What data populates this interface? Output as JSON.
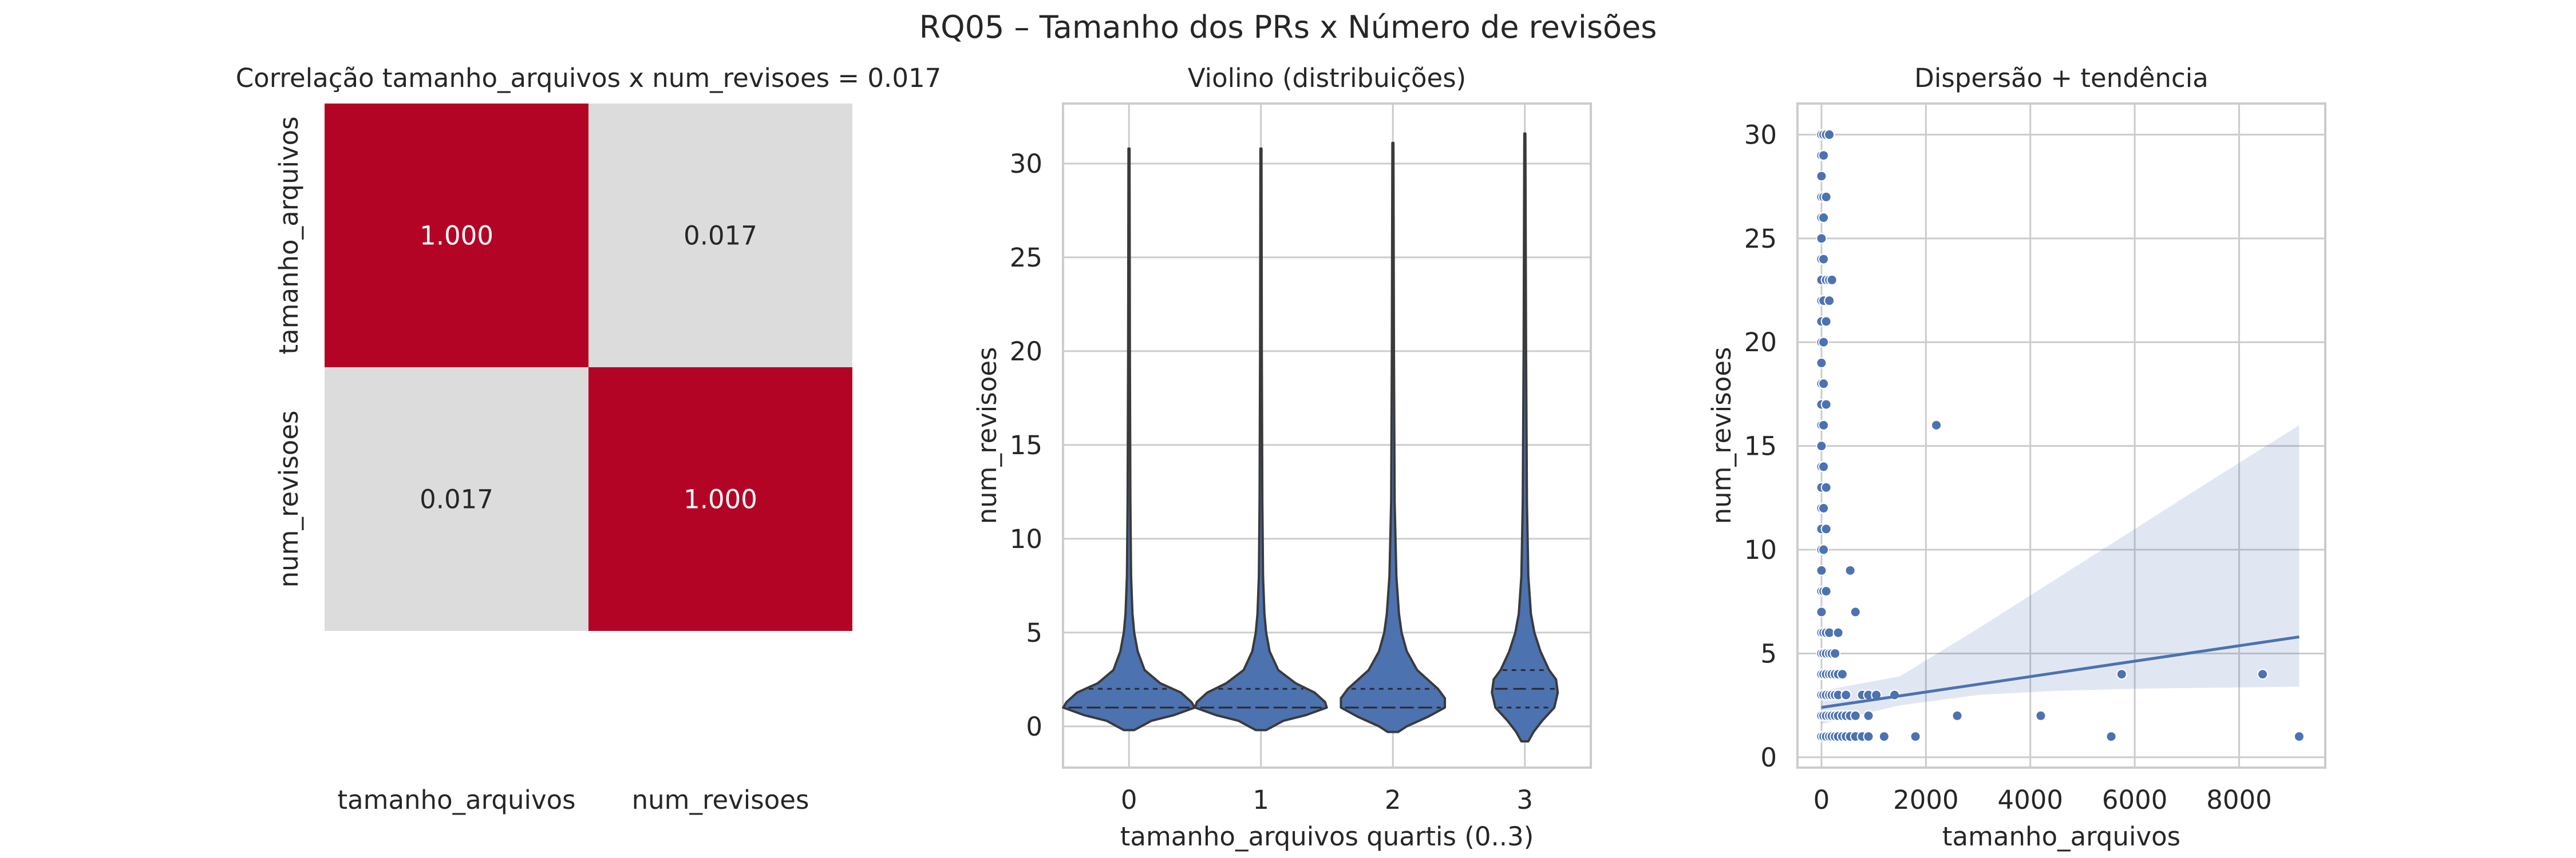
{
  "figure": {
    "title": "RQ05 – Tamanho dos PRs x Número de revisões"
  },
  "chart_data": [
    {
      "type": "heatmap",
      "title": "Correlação tamanho_arquivos x num_revisoes = 0.017",
      "x_categories": [
        "tamanho_arquivos",
        "num_revisoes"
      ],
      "y_categories": [
        "tamanho_arquivos",
        "num_revisoes"
      ],
      "values": [
        [
          1.0,
          0.017
        ],
        [
          0.017,
          1.0
        ]
      ],
      "cell_labels": [
        [
          "1.000",
          "0.017"
        ],
        [
          "0.017",
          "1.000"
        ]
      ],
      "colors": {
        "high": "#b40426",
        "low": "#dddcdc",
        "high_text": "#ffffff",
        "low_text": "#262626"
      }
    },
    {
      "type": "violin",
      "title": "Violino (distribuições)",
      "xlabel": "tamanho_arquivos quartis (0..3)",
      "ylabel": "num_revisoes",
      "categories": [
        "0",
        "1",
        "2",
        "3"
      ],
      "ylim": [
        -2.2,
        33.2
      ],
      "yticks": [
        0,
        5,
        10,
        15,
        20,
        25,
        30
      ],
      "grid": true,
      "color": "#4c72b0",
      "violins": [
        {
          "category": "0",
          "min": -0.2,
          "max": 30.8,
          "q1": 1,
          "median": 1,
          "q3": 2,
          "profile": [
            [
              -0.2,
              0.03
            ],
            [
              0,
              0.07
            ],
            [
              0.3,
              0.13
            ],
            [
              0.6,
              0.26
            ],
            [
              1,
              0.38
            ],
            [
              1.3,
              0.36
            ],
            [
              1.8,
              0.3
            ],
            [
              2.3,
              0.18
            ],
            [
              3,
              0.09
            ],
            [
              4,
              0.05
            ],
            [
              5,
              0.03
            ],
            [
              6,
              0.02
            ],
            [
              8,
              0.012
            ],
            [
              12,
              0.008
            ],
            [
              20,
              0.005
            ],
            [
              30.8,
              0.003
            ]
          ]
        },
        {
          "category": "1",
          "min": -0.2,
          "max": 30.8,
          "q1": 1,
          "median": 1,
          "q3": 2,
          "profile": [
            [
              -0.2,
              0.03
            ],
            [
              0,
              0.07
            ],
            [
              0.3,
              0.13
            ],
            [
              0.6,
              0.26
            ],
            [
              1,
              0.38
            ],
            [
              1.3,
              0.37
            ],
            [
              1.8,
              0.31
            ],
            [
              2.3,
              0.2
            ],
            [
              3,
              0.1
            ],
            [
              4,
              0.05
            ],
            [
              5,
              0.03
            ],
            [
              6,
              0.02
            ],
            [
              8,
              0.012
            ],
            [
              12,
              0.008
            ],
            [
              20,
              0.005
            ],
            [
              30.8,
              0.003
            ]
          ]
        },
        {
          "category": "2",
          "min": -0.3,
          "max": 31.1,
          "q1": 1,
          "median": 1,
          "q3": 2,
          "profile": [
            [
              -0.3,
              0.03
            ],
            [
              0,
              0.08
            ],
            [
              0.5,
              0.2
            ],
            [
              1,
              0.3
            ],
            [
              1.5,
              0.3
            ],
            [
              2,
              0.26
            ],
            [
              2.5,
              0.2
            ],
            [
              3,
              0.14
            ],
            [
              4,
              0.08
            ],
            [
              5,
              0.05
            ],
            [
              6,
              0.035
            ],
            [
              8,
              0.02
            ],
            [
              12,
              0.01
            ],
            [
              20,
              0.006
            ],
            [
              31.1,
              0.003
            ]
          ]
        },
        {
          "category": "3",
          "min": -0.8,
          "max": 31.6,
          "q1": 1,
          "median": 2,
          "q3": 3,
          "profile": [
            [
              -0.8,
              0.02
            ],
            [
              -0.3,
              0.05
            ],
            [
              0.3,
              0.1
            ],
            [
              1,
              0.17
            ],
            [
              1.8,
              0.19
            ],
            [
              2.5,
              0.18
            ],
            [
              3,
              0.14
            ],
            [
              4,
              0.09
            ],
            [
              5,
              0.055
            ],
            [
              6,
              0.035
            ],
            [
              8,
              0.02
            ],
            [
              12,
              0.012
            ],
            [
              20,
              0.007
            ],
            [
              31.6,
              0.003
            ]
          ]
        }
      ]
    },
    {
      "type": "scatter",
      "title": "Dispersão + tendência",
      "xlabel": "tamanho_arquivos",
      "ylabel": "num_revisoes",
      "xlim": [
        -460,
        9650
      ],
      "ylim": [
        -0.5,
        31.5
      ],
      "xticks": [
        0,
        2000,
        4000,
        6000,
        8000
      ],
      "yticks": [
        0,
        5,
        10,
        15,
        20,
        25,
        30
      ],
      "grid": true,
      "color": "#4c72b0",
      "points": [
        [
          0,
          1
        ],
        [
          0,
          2
        ],
        [
          0,
          3
        ],
        [
          0,
          4
        ],
        [
          0,
          5
        ],
        [
          0,
          6
        ],
        [
          0,
          7
        ],
        [
          0,
          8
        ],
        [
          0,
          9
        ],
        [
          0,
          10
        ],
        [
          0,
          11
        ],
        [
          0,
          12
        ],
        [
          0,
          13
        ],
        [
          0,
          14
        ],
        [
          0,
          15
        ],
        [
          0,
          16
        ],
        [
          0,
          17
        ],
        [
          0,
          18
        ],
        [
          0,
          19
        ],
        [
          0,
          20
        ],
        [
          0,
          21
        ],
        [
          0,
          22
        ],
        [
          0,
          23
        ],
        [
          0,
          24
        ],
        [
          0,
          25
        ],
        [
          0,
          26
        ],
        [
          0,
          27
        ],
        [
          0,
          28
        ],
        [
          0,
          29
        ],
        [
          0,
          30
        ],
        [
          40,
          1
        ],
        [
          40,
          2
        ],
        [
          40,
          3
        ],
        [
          40,
          4
        ],
        [
          40,
          5
        ],
        [
          40,
          6
        ],
        [
          40,
          8
        ],
        [
          40,
          10
        ],
        [
          40,
          12
        ],
        [
          40,
          14
        ],
        [
          40,
          16
        ],
        [
          40,
          18
        ],
        [
          40,
          20
        ],
        [
          40,
          22
        ],
        [
          40,
          24
        ],
        [
          40,
          26
        ],
        [
          40,
          27
        ],
        [
          40,
          29
        ],
        [
          40,
          30
        ],
        [
          90,
          1
        ],
        [
          90,
          2
        ],
        [
          90,
          3
        ],
        [
          90,
          4
        ],
        [
          90,
          5
        ],
        [
          90,
          6
        ],
        [
          90,
          8
        ],
        [
          90,
          11
        ],
        [
          90,
          13
        ],
        [
          90,
          17
        ],
        [
          90,
          21
        ],
        [
          90,
          23
        ],
        [
          90,
          27
        ],
        [
          90,
          30
        ],
        [
          150,
          1
        ],
        [
          150,
          2
        ],
        [
          150,
          3
        ],
        [
          150,
          4
        ],
        [
          150,
          5
        ],
        [
          150,
          6
        ],
        [
          150,
          22
        ],
        [
          150,
          23
        ],
        [
          150,
          30
        ],
        [
          200,
          1
        ],
        [
          200,
          2
        ],
        [
          200,
          3
        ],
        [
          200,
          4
        ],
        [
          200,
          5
        ],
        [
          200,
          23
        ],
        [
          260,
          1
        ],
        [
          260,
          2
        ],
        [
          260,
          3
        ],
        [
          260,
          4
        ],
        [
          260,
          5
        ],
        [
          320,
          1
        ],
        [
          320,
          2
        ],
        [
          320,
          3
        ],
        [
          320,
          4
        ],
        [
          320,
          6
        ],
        [
          400,
          1
        ],
        [
          400,
          2
        ],
        [
          400,
          4
        ],
        [
          470,
          1
        ],
        [
          470,
          2
        ],
        [
          470,
          3
        ],
        [
          550,
          1
        ],
        [
          550,
          2
        ],
        [
          550,
          9
        ],
        [
          650,
          1
        ],
        [
          650,
          2
        ],
        [
          650,
          7
        ],
        [
          780,
          1
        ],
        [
          780,
          3
        ],
        [
          900,
          1
        ],
        [
          900,
          2
        ],
        [
          900,
          3
        ],
        [
          1050,
          3
        ],
        [
          1200,
          1
        ],
        [
          1400,
          3
        ],
        [
          1800,
          1
        ],
        [
          2200,
          16
        ],
        [
          2600,
          2
        ],
        [
          4200,
          2
        ],
        [
          5550,
          1
        ],
        [
          5750,
          4
        ],
        [
          8450,
          4
        ],
        [
          9150,
          1
        ]
      ],
      "trend": {
        "x": [
          0,
          9150
        ],
        "y": [
          2.4,
          5.8
        ]
      },
      "ci": {
        "x": [
          0,
          1500,
          3000,
          4500,
          6000,
          7500,
          9150
        ],
        "upper": [
          3.2,
          3.9,
          6.2,
          8.6,
          11.0,
          13.4,
          16.0
        ],
        "lower": [
          1.6,
          2.5,
          3.0,
          3.2,
          3.3,
          3.35,
          3.4
        ]
      }
    }
  ]
}
